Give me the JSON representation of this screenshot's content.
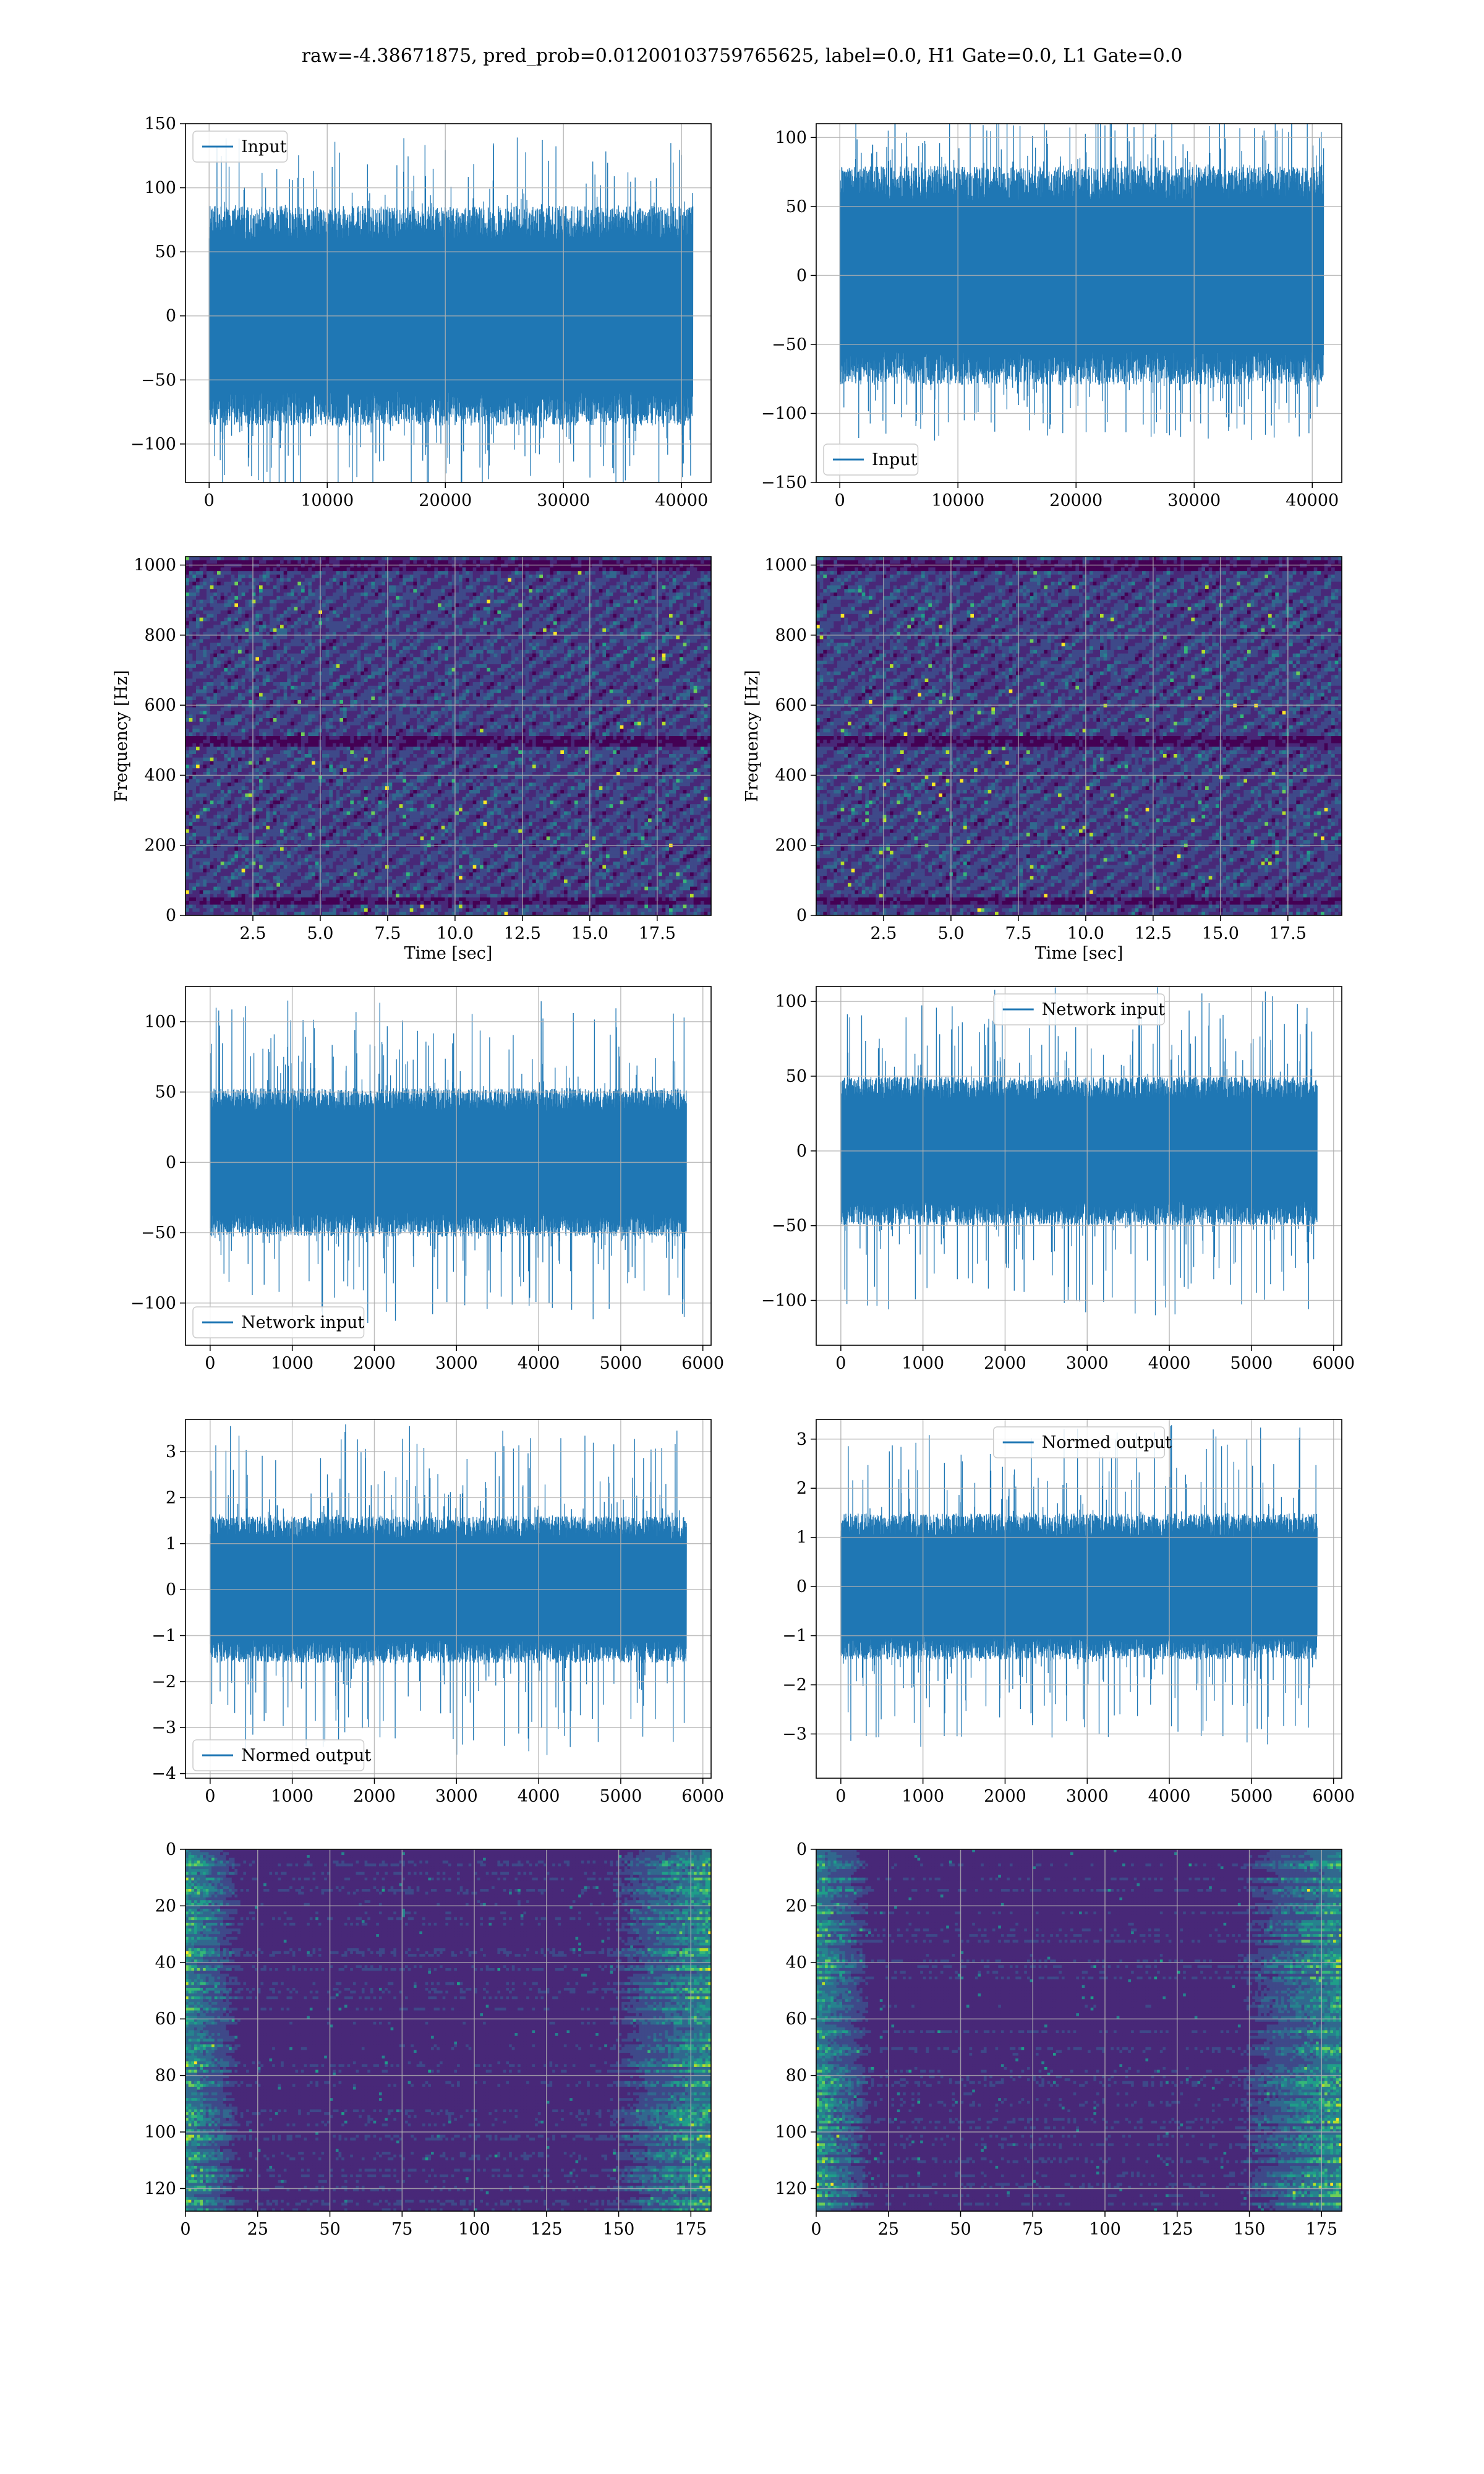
{
  "figure": {
    "title": "raw=-4.38671875, pred_prob=0.01200103759765625, label=0.0, H1 Gate=0.0, L1 Gate=0.0",
    "colors": {
      "line": "#1f77b4",
      "grid": "#b0b0b0",
      "viridis": [
        "#440154",
        "#482878",
        "#3e4989",
        "#31688e",
        "#26828e",
        "#1f9e89",
        "#35b779",
        "#6ece58",
        "#b5de2b",
        "#fde725"
      ]
    }
  },
  "chart_data": [
    {
      "type": "line",
      "description_row": 1,
      "column": "left",
      "series": [
        {
          "name": "Input",
          "summary": "dense noise, mostly within ±75, peaks near ±135"
        }
      ],
      "legend": {
        "label": "Input",
        "loc": "upper left"
      },
      "xlim": [
        -2000,
        42500
      ],
      "ylim": [
        -130,
        150
      ],
      "xticks": [
        0,
        10000,
        20000,
        30000,
        40000
      ],
      "yticks": [
        -100,
        -50,
        0,
        50,
        100,
        150
      ],
      "x_range": [
        0,
        40960
      ],
      "amplitude": {
        "core": 78,
        "peak": 140
      },
      "grid": true
    },
    {
      "type": "line",
      "description_row": 1,
      "column": "right",
      "series": [
        {
          "name": "Input",
          "summary": "dense noise, mostly within ±70, peaks near ±120"
        }
      ],
      "legend": {
        "label": "Input",
        "loc": "lower left"
      },
      "xlim": [
        -2000,
        42500
      ],
      "ylim": [
        -150,
        110
      ],
      "xticks": [
        0,
        10000,
        20000,
        30000,
        40000
      ],
      "yticks": [
        -150,
        -100,
        -50,
        0,
        50,
        100
      ],
      "x_range": [
        0,
        40960
      ],
      "amplitude": {
        "core": 72,
        "peak": 120
      },
      "grid": true
    },
    {
      "type": "heatmap",
      "description_row": 2,
      "column": "left",
      "xlabel": "Time [sec]",
      "ylabel": "Frequency [Hz]",
      "xlim": [
        0,
        19.5
      ],
      "ylim": [
        0,
        1024
      ],
      "xticks": [
        "2.5",
        "5.0",
        "7.5",
        "10.0",
        "12.5",
        "15.0",
        "17.5"
      ],
      "yticks": [
        "0",
        "200",
        "400",
        "600",
        "800",
        "1000"
      ],
      "xtick_values": [
        2.5,
        5.0,
        7.5,
        10.0,
        12.5,
        15.0,
        17.5
      ],
      "ytick_values": [
        0,
        200,
        400,
        600,
        800,
        1000
      ],
      "dark_bands_hz": [
        40,
        500,
        1000
      ],
      "grid": true
    },
    {
      "type": "heatmap",
      "description_row": 2,
      "column": "right",
      "xlabel": "Time [sec]",
      "ylabel": "Frequency [Hz]",
      "xlim": [
        0,
        19.5
      ],
      "ylim": [
        0,
        1024
      ],
      "xticks": [
        "2.5",
        "5.0",
        "7.5",
        "10.0",
        "12.5",
        "15.0",
        "17.5"
      ],
      "yticks": [
        "0",
        "200",
        "400",
        "600",
        "800",
        "1000"
      ],
      "xtick_values": [
        2.5,
        5.0,
        7.5,
        10.0,
        12.5,
        15.0,
        17.5
      ],
      "ytick_values": [
        0,
        200,
        400,
        600,
        800,
        1000
      ],
      "dark_bands_hz": [
        40,
        500,
        1000
      ],
      "grid": true
    },
    {
      "type": "line",
      "description_row": 3,
      "column": "left",
      "series": [
        {
          "name": "Network input",
          "summary": "dense noise, mostly within ±50, peaks near ±115"
        }
      ],
      "legend": {
        "label": "Network input",
        "loc": "lower left"
      },
      "xlim": [
        -300,
        6100
      ],
      "ylim": [
        -130,
        125
      ],
      "xticks": [
        0,
        1000,
        2000,
        3000,
        4000,
        5000,
        6000
      ],
      "yticks": [
        -100,
        -50,
        0,
        50,
        100
      ],
      "x_range": [
        0,
        5800
      ],
      "amplitude": {
        "core": 48,
        "peak": 115
      },
      "grid": true
    },
    {
      "type": "line",
      "description_row": 3,
      "column": "right",
      "series": [
        {
          "name": "Network input",
          "summary": "dense noise, mostly within ±45, peaks near ±110"
        }
      ],
      "legend": {
        "label": "Network input",
        "loc": "upper center"
      },
      "xlim": [
        -300,
        6100
      ],
      "ylim": [
        -130,
        110
      ],
      "xticks": [
        0,
        1000,
        2000,
        3000,
        4000,
        5000,
        6000
      ],
      "yticks": [
        -100,
        -50,
        0,
        50,
        100
      ],
      "x_range": [
        0,
        5800
      ],
      "amplitude": {
        "core": 45,
        "peak": 110
      },
      "grid": true
    },
    {
      "type": "line",
      "description_row": 4,
      "column": "left",
      "series": [
        {
          "name": "Normed output",
          "summary": "dense noise, mostly within ±1.4, peaks near ±3.6"
        }
      ],
      "legend": {
        "label": "Normed output",
        "loc": "lower left"
      },
      "xlim": [
        -300,
        6100
      ],
      "ylim": [
        -4.1,
        3.7
      ],
      "xticks": [
        0,
        1000,
        2000,
        3000,
        4000,
        5000,
        6000
      ],
      "yticks": [
        -4,
        -3,
        -2,
        -1,
        0,
        1,
        2,
        3
      ],
      "x_range": [
        0,
        5800
      ],
      "amplitude": {
        "core": 1.45,
        "peak": 3.6
      },
      "grid": true
    },
    {
      "type": "line",
      "description_row": 4,
      "column": "right",
      "series": [
        {
          "name": "Normed output",
          "summary": "dense noise, mostly within ±1.3, peaks near ±3.3"
        }
      ],
      "legend": {
        "label": "Normed output",
        "loc": "upper center"
      },
      "xlim": [
        -300,
        6100
      ],
      "ylim": [
        -3.9,
        3.4
      ],
      "xticks": [
        0,
        1000,
        2000,
        3000,
        4000,
        5000,
        6000
      ],
      "yticks": [
        -3,
        -2,
        -1,
        0,
        1,
        2,
        3
      ],
      "x_range": [
        0,
        5800
      ],
      "amplitude": {
        "core": 1.35,
        "peak": 3.3
      },
      "grid": true
    },
    {
      "type": "heatmap",
      "description_row": 5,
      "column": "left",
      "xlim": [
        0,
        182
      ],
      "ylim": [
        128,
        0
      ],
      "xticks": [
        "0",
        "25",
        "50",
        "75",
        "100",
        "125",
        "150",
        "175"
      ],
      "yticks": [
        "0",
        "20",
        "40",
        "60",
        "80",
        "100",
        "120"
      ],
      "xtick_values": [
        0,
        25,
        50,
        75,
        100,
        125,
        150,
        175
      ],
      "ytick_values": [
        0,
        20,
        40,
        60,
        80,
        100,
        120
      ],
      "bright_regions": "left edge (x<20) and right edge (x>145), horizontal streaks",
      "grid": true
    },
    {
      "type": "heatmap",
      "description_row": 5,
      "column": "right",
      "xlim": [
        0,
        182
      ],
      "ylim": [
        128,
        0
      ],
      "xticks": [
        "0",
        "25",
        "50",
        "75",
        "100",
        "125",
        "150",
        "175"
      ],
      "yticks": [
        "0",
        "20",
        "40",
        "60",
        "80",
        "100",
        "120"
      ],
      "xtick_values": [
        0,
        25,
        50,
        75,
        100,
        125,
        150,
        175
      ],
      "ytick_values": [
        0,
        20,
        40,
        60,
        80,
        100,
        120
      ],
      "bright_regions": "left edge (x<20) and right edge (x>145), horizontal streaks",
      "grid": true
    }
  ]
}
